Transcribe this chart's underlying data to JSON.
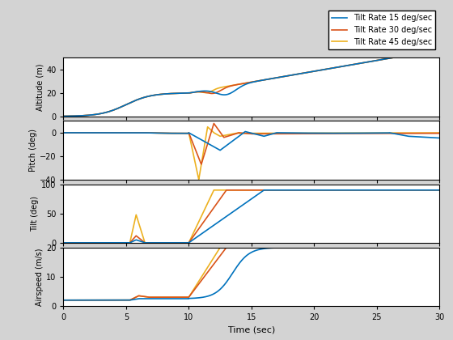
{
  "legend_labels": [
    "Tilt Rate 15 deg/sec",
    "Tilt Rate 30 deg/sec",
    "Tilt Rate 45 deg/sec"
  ],
  "colors": [
    "#0072BD",
    "#D95319",
    "#EDB120"
  ],
  "xlim": [
    0,
    30
  ],
  "axes": [
    {
      "ylabel": "Altitude (m)",
      "ylim": [
        0,
        50
      ]
    },
    {
      "ylabel": "Pitch (deg)",
      "ylim": [
        -40,
        10
      ]
    },
    {
      "ylabel": "Tilt (deg)",
      "ylim": [
        0,
        100
      ]
    },
    {
      "ylabel": "Airspeed (m/s)",
      "ylim": [
        0,
        20
      ],
      "xlabel": "Time (sec)"
    }
  ],
  "xticks": [
    0,
    5,
    10,
    15,
    20,
    25,
    30
  ],
  "background_color": "#FFFFFF",
  "line_width": 1.2,
  "figure_bg": "#D3D3D3"
}
